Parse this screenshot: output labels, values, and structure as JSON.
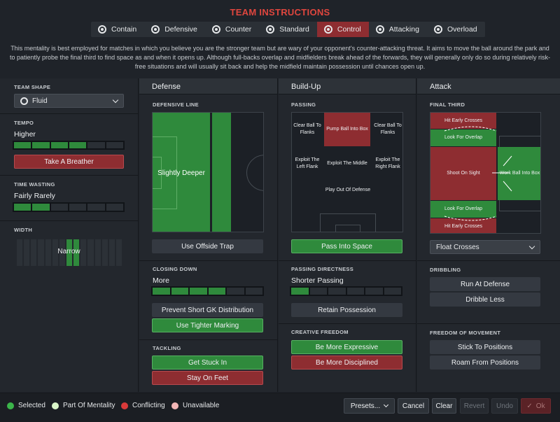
{
  "title": "TEAM INSTRUCTIONS",
  "mentalities": [
    {
      "label": "Contain",
      "icon": "contain-icon"
    },
    {
      "label": "Defensive",
      "icon": "defensive-icon"
    },
    {
      "label": "Counter",
      "icon": "counter-icon"
    },
    {
      "label": "Standard",
      "icon": "standard-icon"
    },
    {
      "label": "Control",
      "icon": "control-icon",
      "active": true
    },
    {
      "label": "Attacking",
      "icon": "attacking-icon"
    },
    {
      "label": "Overload",
      "icon": "overload-icon"
    }
  ],
  "description": "This mentality is best employed for matches in which you believe you are the stronger team but are wary of your opponent's counter-attacking threat. It aims to move the ball around the park and to patiently probe the final third to find space as and when it opens up. Although full-backs overlap and midfielders break ahead of the forwards, they will generally only do so during relatively risk-free situations and will usually sit back and help the midfield maintain possession until chances open up.",
  "left": {
    "team_shape": {
      "label": "TEAM SHAPE",
      "value": "Fluid"
    },
    "tempo": {
      "label": "TEMPO",
      "value": "Higher",
      "level": 4,
      "max": 6,
      "button": "Take A Breather"
    },
    "time_wasting": {
      "label": "TIME WASTING",
      "value": "Fairly Rarely",
      "level": 2,
      "max": 6
    },
    "width": {
      "label": "WIDTH",
      "value": "Narrow"
    }
  },
  "defense": {
    "header": "Defense",
    "defensive_line": {
      "label": "DEFENSIVE LINE",
      "value": "Slightly Deeper"
    },
    "offside_button": "Use Offside Trap",
    "closing_down": {
      "label": "CLOSING DOWN",
      "value": "More",
      "level": 4,
      "max": 6
    },
    "buttons": [
      "Prevent Short GK Distribution",
      "Use Tighter Marking"
    ],
    "tackling": {
      "label": "TACKLING",
      "buttons": [
        "Get Stuck In",
        "Stay On Feet"
      ]
    }
  },
  "buildup": {
    "header": "Build-Up",
    "passing": {
      "label": "PASSING",
      "zones": {
        "clear_left": "Clear Ball To Flanks",
        "pump": "Pump Ball Into Box",
        "clear_right": "Clear Ball To Flanks",
        "exploit_left": "Exploit The Left Flank",
        "exploit_middle": "Exploit The Middle",
        "exploit_right": "Exploit The Right Flank",
        "play_out": "Play Out Of Defense"
      }
    },
    "pass_button": "Pass Into Space",
    "directness": {
      "label": "PASSING DIRECTNESS",
      "value": "Shorter Passing",
      "level": 1,
      "max": 6
    },
    "retain_button": "Retain Possession",
    "creative": {
      "label": "CREATIVE FREEDOM",
      "buttons": [
        "Be More Expressive",
        "Be More Disciplined"
      ]
    }
  },
  "attack": {
    "header": "Attack",
    "final_third": {
      "label": "FINAL THIRD",
      "zones": {
        "hit_crosses_top": "Hit Early Crosses",
        "overlap_top": "Look For Overlap",
        "shoot": "Shoot On Sight",
        "work_ball": "Work Ball Into Box",
        "overlap_bottom": "Look For Overlap",
        "hit_crosses_bottom": "Hit Early Crosses"
      }
    },
    "cross_dropdown": "Float Crosses",
    "dribbling": {
      "label": "DRIBBLING",
      "buttons": [
        "Run At Defense",
        "Dribble Less"
      ]
    },
    "freedom": {
      "label": "FREEDOM OF MOVEMENT",
      "buttons": [
        "Stick To Positions",
        "Roam From Positions"
      ]
    }
  },
  "legend": [
    {
      "label": "Selected",
      "color": "#3bb54a"
    },
    {
      "label": "Part Of Mentality",
      "color": "#d9f5c8"
    },
    {
      "label": "Conflicting",
      "color": "#d93a3a"
    },
    {
      "label": "Unavailable",
      "color": "#f2b6b6"
    }
  ],
  "footer": {
    "presets": "Presets...",
    "cancel": "Cancel",
    "clear": "Clear",
    "revert": "Revert",
    "undo": "Undo",
    "ok": "Ok"
  }
}
